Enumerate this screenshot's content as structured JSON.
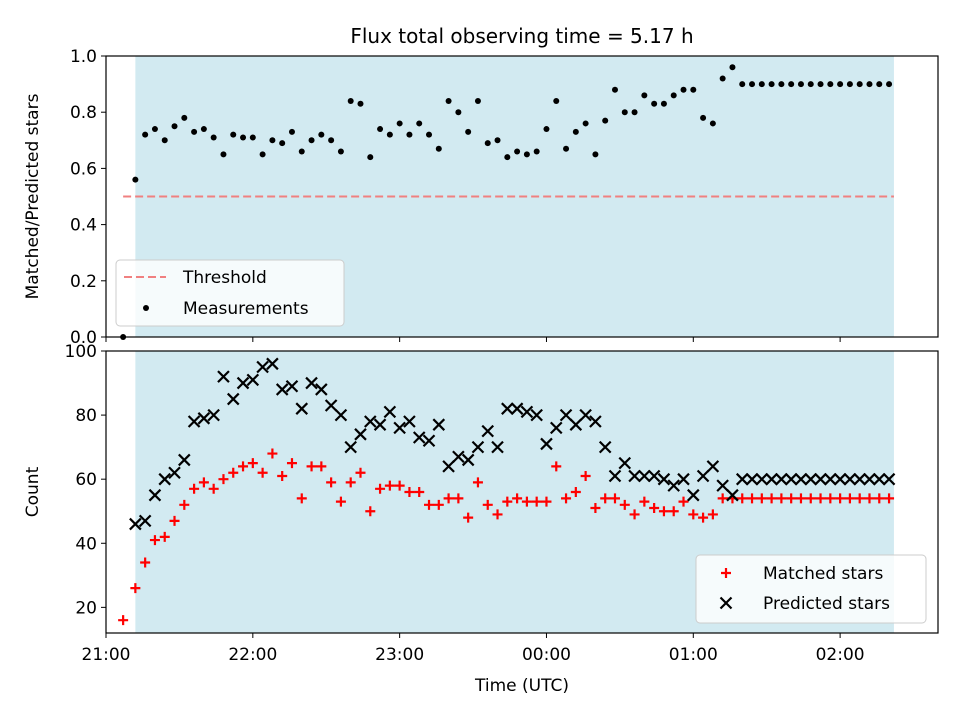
{
  "title": "Flux total observing time = 5.17 h",
  "colors": {
    "band": "#add8e6",
    "threshold": "#f08080",
    "matched": "#ff0000",
    "predicted": "#000000",
    "measurements": "#000000"
  },
  "chart_data": [
    {
      "type": "scatter",
      "ylabel": "Matched/Predicted stars",
      "ylim": [
        0,
        1.0
      ],
      "yticks": [
        "0.0",
        "0.2",
        "0.4",
        "0.6",
        "0.8",
        "1.0"
      ],
      "xlim": [
        "21:00",
        "02:40"
      ],
      "shaded_range": [
        "21:12",
        "02:22"
      ],
      "threshold": {
        "name": "Threshold",
        "value": 0.5,
        "x_range": [
          "21:07",
          "02:22"
        ]
      },
      "legend": [
        "Threshold",
        "Measurements"
      ],
      "legend_location": "lower-left",
      "series": [
        {
          "name": "Measurements",
          "x": [
            "21:07",
            "21:12",
            "21:16",
            "21:20",
            "21:24",
            "21:28",
            "21:32",
            "21:36",
            "21:40",
            "21:44",
            "21:48",
            "21:52",
            "21:56",
            "22:00",
            "22:04",
            "22:08",
            "22:12",
            "22:16",
            "22:20",
            "22:24",
            "22:28",
            "22:32",
            "22:36",
            "22:40",
            "22:44",
            "22:48",
            "22:52",
            "22:56",
            "23:00",
            "23:04",
            "23:08",
            "23:12",
            "23:16",
            "23:20",
            "23:24",
            "23:28",
            "23:32",
            "23:36",
            "23:40",
            "23:44",
            "23:48",
            "23:52",
            "23:56",
            "00:00",
            "00:04",
            "00:08",
            "00:12",
            "00:16",
            "00:20",
            "00:24",
            "00:28",
            "00:32",
            "00:36",
            "00:40",
            "00:44",
            "00:48",
            "00:52",
            "00:56",
            "01:00",
            "01:04",
            "01:08",
            "01:12",
            "01:16",
            "01:20",
            "01:24",
            "01:28",
            "01:32",
            "01:36",
            "01:40",
            "01:44",
            "01:48",
            "01:52",
            "01:56",
            "02:00",
            "02:04",
            "02:08",
            "02:12",
            "02:16",
            "02:20"
          ],
          "y": [
            0.0,
            0.56,
            0.72,
            0.74,
            0.7,
            0.75,
            0.78,
            0.73,
            0.74,
            0.71,
            0.65,
            0.72,
            0.71,
            0.71,
            0.65,
            0.7,
            0.69,
            0.73,
            0.66,
            0.7,
            0.72,
            0.7,
            0.66,
            0.84,
            0.83,
            0.64,
            0.74,
            0.72,
            0.76,
            0.72,
            0.76,
            0.72,
            0.67,
            0.84,
            0.8,
            0.73,
            0.84,
            0.69,
            0.7,
            0.64,
            0.66,
            0.65,
            0.66,
            0.74,
            0.84,
            0.67,
            0.73,
            0.76,
            0.65,
            0.77,
            0.88,
            0.8,
            0.8,
            0.86,
            0.83,
            0.83,
            0.86,
            0.88,
            0.88,
            0.78,
            0.76,
            0.92,
            0.96,
            0.9,
            0.9,
            0.9,
            0.9,
            0.9,
            0.9,
            0.9,
            0.9,
            0.9,
            0.9,
            0.9,
            0.9,
            0.9,
            0.9,
            0.9,
            0.9
          ]
        }
      ]
    },
    {
      "type": "scatter",
      "xlabel": "Time (UTC)",
      "ylabel": "Count",
      "ylim": [
        12,
        100
      ],
      "yticks": [
        "20",
        "40",
        "60",
        "80",
        "100"
      ],
      "xticks": [
        "21:00",
        "22:00",
        "23:00",
        "00:00",
        "01:00",
        "02:00"
      ],
      "xlim": [
        "21:00",
        "02:40"
      ],
      "shaded_range": [
        "21:12",
        "02:22"
      ],
      "legend": [
        "Matched stars",
        "Predicted stars"
      ],
      "legend_location": "lower-right",
      "series": [
        {
          "name": "Matched stars",
          "x": [
            "21:07",
            "21:12",
            "21:16",
            "21:20",
            "21:24",
            "21:28",
            "21:32",
            "21:36",
            "21:40",
            "21:44",
            "21:48",
            "21:52",
            "21:56",
            "22:00",
            "22:04",
            "22:08",
            "22:12",
            "22:16",
            "22:20",
            "22:24",
            "22:28",
            "22:32",
            "22:36",
            "22:40",
            "22:44",
            "22:48",
            "22:52",
            "22:56",
            "23:00",
            "23:04",
            "23:08",
            "23:12",
            "23:16",
            "23:20",
            "23:24",
            "23:28",
            "23:32",
            "23:36",
            "23:40",
            "23:44",
            "23:48",
            "23:52",
            "23:56",
            "00:00",
            "00:04",
            "00:08",
            "00:12",
            "00:16",
            "00:20",
            "00:24",
            "00:28",
            "00:32",
            "00:36",
            "00:40",
            "00:44",
            "00:48",
            "00:52",
            "00:56",
            "01:00",
            "01:04",
            "01:08",
            "01:12",
            "01:16",
            "01:20",
            "01:24",
            "01:28",
            "01:32",
            "01:36",
            "01:40",
            "01:44",
            "01:48",
            "01:52",
            "01:56",
            "02:00",
            "02:04",
            "02:08",
            "02:12",
            "02:16",
            "02:20"
          ],
          "y": [
            16,
            26,
            34,
            41,
            42,
            47,
            52,
            57,
            59,
            57,
            60,
            62,
            64,
            65,
            62,
            68,
            61,
            65,
            54,
            64,
            64,
            59,
            53,
            59,
            62,
            50,
            57,
            58,
            58,
            56,
            56,
            52,
            52,
            54,
            54,
            48,
            59,
            52,
            49,
            53,
            54,
            53,
            53,
            53,
            64,
            54,
            56,
            61,
            51,
            54,
            54,
            52,
            49,
            53,
            51,
            50,
            50,
            53,
            49,
            48,
            49,
            54,
            54,
            54,
            54,
            54,
            54,
            54,
            54,
            54,
            54,
            54,
            54,
            54,
            54,
            54,
            54,
            54,
            54
          ]
        },
        {
          "name": "Predicted stars",
          "x": [
            "21:12",
            "21:16",
            "21:20",
            "21:24",
            "21:28",
            "21:32",
            "21:36",
            "21:40",
            "21:44",
            "21:48",
            "21:52",
            "21:56",
            "22:00",
            "22:04",
            "22:08",
            "22:12",
            "22:16",
            "22:20",
            "22:24",
            "22:28",
            "22:32",
            "22:36",
            "22:40",
            "22:44",
            "22:48",
            "22:52",
            "22:56",
            "23:00",
            "23:04",
            "23:08",
            "23:12",
            "23:16",
            "23:20",
            "23:24",
            "23:28",
            "23:32",
            "23:36",
            "23:40",
            "23:44",
            "23:48",
            "23:52",
            "23:56",
            "00:00",
            "00:04",
            "00:08",
            "00:12",
            "00:16",
            "00:20",
            "00:24",
            "00:28",
            "00:32",
            "00:36",
            "00:40",
            "00:44",
            "00:48",
            "00:52",
            "00:56",
            "01:00",
            "01:04",
            "01:08",
            "01:12",
            "01:16",
            "01:20",
            "01:24",
            "01:28",
            "01:32",
            "01:36",
            "01:40",
            "01:44",
            "01:48",
            "01:52",
            "01:56",
            "02:00",
            "02:04",
            "02:08",
            "02:12",
            "02:16",
            "02:20"
          ],
          "y": [
            46,
            47,
            55,
            60,
            62,
            66,
            78,
            79,
            80,
            92,
            85,
            90,
            91,
            95,
            96,
            88,
            89,
            82,
            90,
            88,
            83,
            80,
            70,
            74,
            78,
            77,
            81,
            76,
            78,
            73,
            72,
            77,
            64,
            67,
            66,
            70,
            75,
            70,
            82,
            82,
            81,
            80,
            71,
            76,
            80,
            77,
            80,
            78,
            70,
            61,
            65,
            61,
            61,
            61,
            60,
            58,
            60,
            55,
            61,
            64,
            58,
            55,
            60,
            60,
            60,
            60,
            60,
            60,
            60,
            60,
            60,
            60,
            60,
            60,
            60,
            60,
            60,
            60
          ]
        }
      ]
    }
  ]
}
